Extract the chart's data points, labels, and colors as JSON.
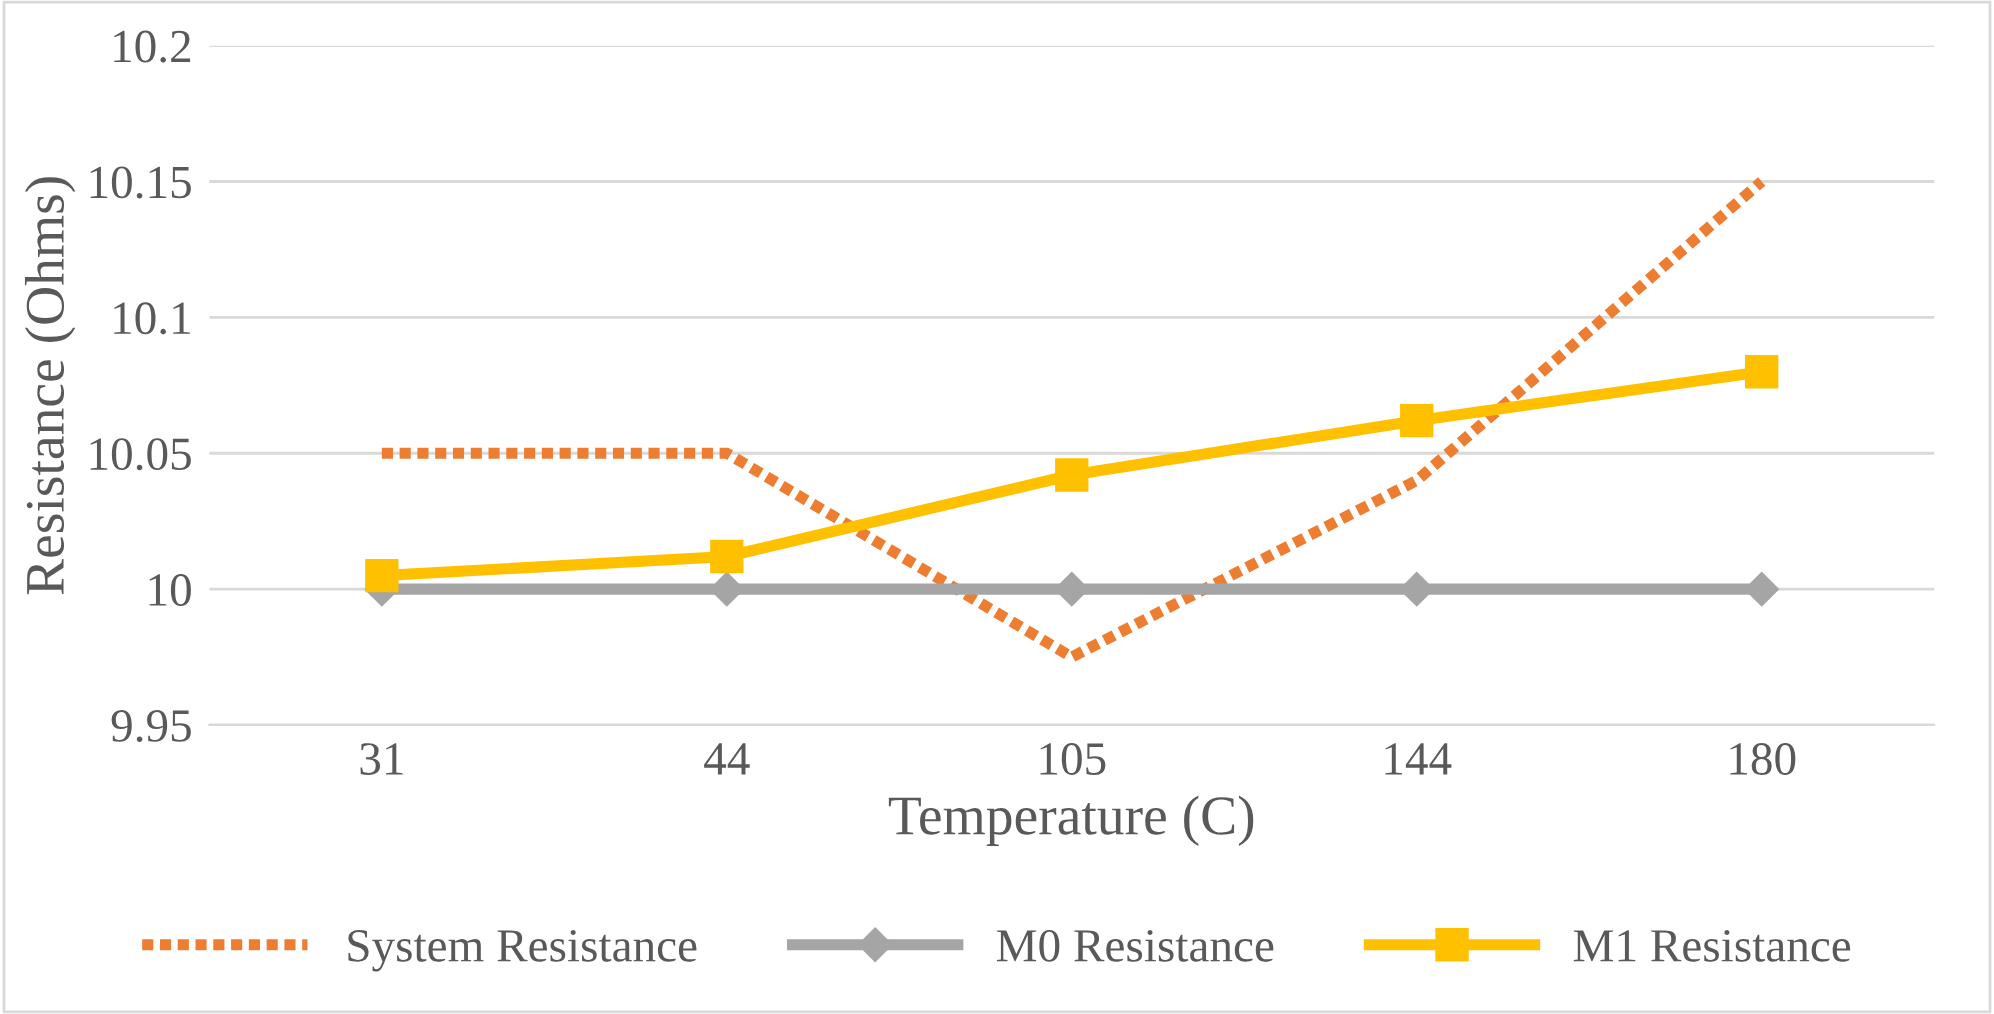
{
  "chart_data": {
    "type": "line",
    "xlabel": "Temperature (C)",
    "ylabel": "Resistance (Ohms)",
    "categories": [
      "31",
      "44",
      "105",
      "144",
      "180"
    ],
    "series": [
      {
        "name": "System Resistance",
        "color": "#ed7d31",
        "line_style": "dotted",
        "marker": "none",
        "values": [
          10.05,
          10.05,
          9.975,
          10.04,
          10.15
        ]
      },
      {
        "name": "M0 Resistance",
        "color": "#a5a5a5",
        "line_style": "solid",
        "marker": "diamond",
        "values": [
          10,
          10,
          10,
          10,
          10
        ]
      },
      {
        "name": "M1 Resistance",
        "color": "#ffc000",
        "line_style": "solid",
        "marker": "square",
        "values": [
          10.005,
          10.012,
          10.042,
          10.062,
          10.08
        ]
      }
    ],
    "ylim": [
      9.95,
      10.2
    ],
    "yticks": [
      9.95,
      10,
      10.05,
      10.1,
      10.15,
      10.2
    ],
    "grid": "y",
    "legend": "bottom"
  }
}
